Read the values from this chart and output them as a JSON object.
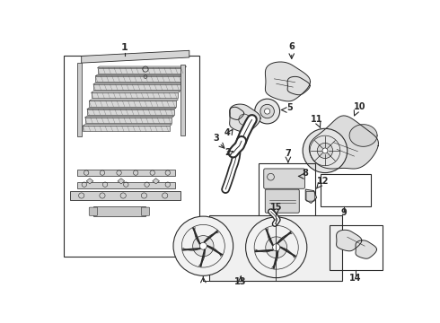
{
  "bg_color": "#ffffff",
  "lc": "#2a2a2a",
  "fig_width": 4.9,
  "fig_height": 3.6,
  "dpi": 100,
  "xlim": [
    0,
    490
  ],
  "ylim": [
    0,
    360
  ]
}
